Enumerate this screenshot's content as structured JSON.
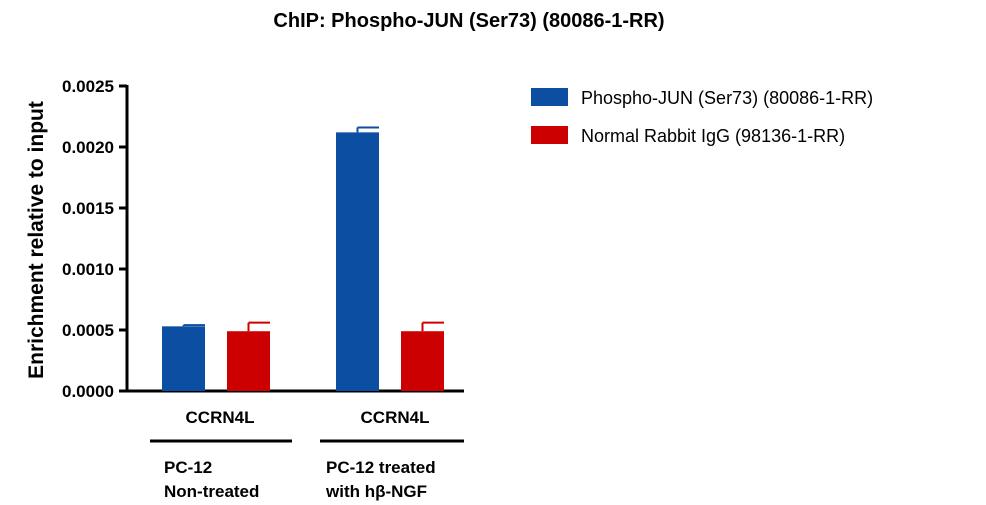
{
  "chart_data": {
    "type": "bar",
    "title": "ChIP: Phospho-JUN (Ser73) (80086-1-RR)",
    "ylabel": "Enrichment relative to input",
    "xlabel": "",
    "ylim": [
      0,
      0.0025
    ],
    "yticks": [
      "0.0000",
      "0.0005",
      "0.0010",
      "0.0015",
      "0.0020",
      "0.0025"
    ],
    "categories": [
      "CCRN4L",
      "CCRN4L"
    ],
    "groups": [
      {
        "lines": [
          "PC-12",
          "Non-treated"
        ]
      },
      {
        "lines": [
          "PC-12 treated",
          "with hβ-NGF"
        ]
      }
    ],
    "series": [
      {
        "name": "Phospho-JUN (Ser73) (80086-1-RR)",
        "color": "#0b4ea2",
        "values": [
          0.00053,
          0.00212
        ],
        "errors": [
          1e-05,
          4e-05
        ]
      },
      {
        "name": "Normal Rabbit IgG (98136-1-RR)",
        "color": "#cc0000",
        "values": [
          0.00049,
          0.00049
        ],
        "errors": [
          7e-05,
          7e-05
        ]
      }
    ],
    "legend": "top-right",
    "grid": false
  }
}
